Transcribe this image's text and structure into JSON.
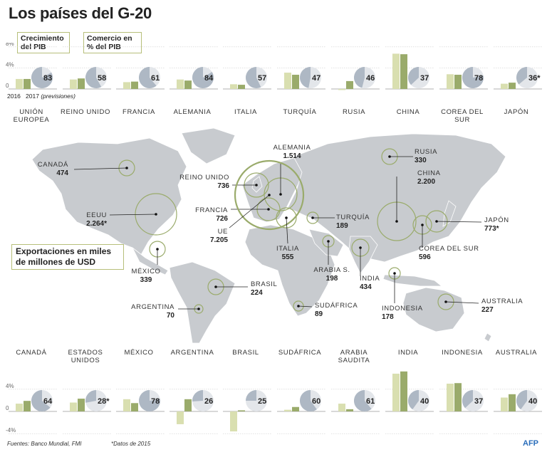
{
  "title": "Los países del G-20",
  "legend": {
    "growth_label": "Crecimiento del PIB",
    "trade_label": "Comercio en % del PIB"
  },
  "years_label": {
    "y2016": "2016",
    "y2017": "2017",
    "note": "(previsiones)"
  },
  "exports_label": "Exportaciones en miles de millones de USD",
  "footer": {
    "sources": "Fuentes: Banco Mundial, FMI",
    "note": "*Datos de 2015",
    "agency": "AFP"
  },
  "colors": {
    "bar_2016": "#d9dfb0",
    "bar_2017": "#9aab6b",
    "pie_bg": "#e3e6ea",
    "pie_fill": "#aeb8c4",
    "circle": "#9aab6b",
    "land": "#c8cbcf",
    "ocean": "#ffffff"
  },
  "chart_data": [
    {
      "type": "bar",
      "title": "Crecimiento del PIB y Comercio en % del PIB (fila superior)",
      "ylabel": "Crecimiento del PIB (%)",
      "ylim": [
        0,
        8
      ],
      "yticks": [
        "8%",
        "4%",
        "0"
      ],
      "categories": [
        "UNIÓN EUROPEA",
        "REINO UNIDO",
        "FRANCIA",
        "ALEMANIA",
        "ITALIA",
        "TURQUÍA",
        "RUSIA",
        "CHINA",
        "COREA DEL SUR",
        "JAPÓN"
      ],
      "series": [
        {
          "name": "2016",
          "values": [
            1.9,
            1.8,
            1.3,
            1.8,
            0.9,
            3.1,
            -0.2,
            6.7,
            2.8,
            1.0
          ]
        },
        {
          "name": "2017",
          "values": [
            1.9,
            2.0,
            1.4,
            1.6,
            0.8,
            2.7,
            1.5,
            6.6,
            2.7,
            1.2
          ]
        }
      ],
      "trade_pct": [
        83,
        58,
        61,
        84,
        57,
        47,
        46,
        37,
        78,
        36
      ],
      "trade_labels": [
        "83",
        "58",
        "61",
        "84",
        "57",
        "47",
        "46",
        "37",
        "78",
        "36*"
      ]
    },
    {
      "type": "bar",
      "title": "Crecimiento del PIB y Comercio en % del PIB (fila inferior)",
      "ylabel": "Crecimiento del PIB (%)",
      "ylim": [
        -4,
        8
      ],
      "yticks": [
        "8%",
        "4%",
        "0",
        "-4%"
      ],
      "categories": [
        "CANADÁ",
        "ESTADOS UNIDOS",
        "MÉXICO",
        "ARGENTINA",
        "BRASIL",
        "SUDÁFRICA",
        "ARABIA SAUDITA",
        "INDIA",
        "INDONESIA",
        "AUSTRALIA"
      ],
      "series": [
        {
          "name": "2016",
          "values": [
            1.4,
            1.6,
            2.2,
            -2.3,
            -3.6,
            0.3,
            1.4,
            6.8,
            5.0,
            2.5
          ]
        },
        {
          "name": "2017",
          "values": [
            1.9,
            2.3,
            1.5,
            2.2,
            0.2,
            0.8,
            0.4,
            7.2,
            5.1,
            3.1
          ]
        }
      ],
      "trade_pct": [
        64,
        28,
        78,
        26,
        25,
        60,
        61,
        40,
        37,
        40
      ],
      "trade_labels": [
        "64",
        "28*",
        "78",
        "26",
        "25",
        "60",
        "61",
        "40",
        "37",
        "40"
      ]
    },
    {
      "type": "scatter",
      "title": "Exportaciones en miles de millones de USD",
      "entries": [
        {
          "name": "CANADÁ",
          "value": "474"
        },
        {
          "name": "EEUU",
          "value": "2.264*"
        },
        {
          "name": "MÉXICO",
          "value": "339"
        },
        {
          "name": "BRASIL",
          "value": "224"
        },
        {
          "name": "ARGENTINA",
          "value": "70"
        },
        {
          "name": "REINO UNIDO",
          "value": "736"
        },
        {
          "name": "ALEMANIA",
          "value": "1.514"
        },
        {
          "name": "FRANCIA",
          "value": "726"
        },
        {
          "name": "UE",
          "value": "7.205"
        },
        {
          "name": "ITALIA",
          "value": "555"
        },
        {
          "name": "RUSIA",
          "value": "330"
        },
        {
          "name": "CHINA",
          "value": "2.200"
        },
        {
          "name": "TURQUÍA",
          "value": "189"
        },
        {
          "name": "JAPÓN",
          "value": "773*"
        },
        {
          "name": "COREA DEL SUR",
          "value": "596"
        },
        {
          "name": "ARABIA S.",
          "value": "198"
        },
        {
          "name": "INDIA",
          "value": "434"
        },
        {
          "name": "INDONESIA",
          "value": "178"
        },
        {
          "name": "SUDÁFRICA",
          "value": "89"
        },
        {
          "name": "AUSTRALIA",
          "value": "227"
        }
      ]
    }
  ]
}
